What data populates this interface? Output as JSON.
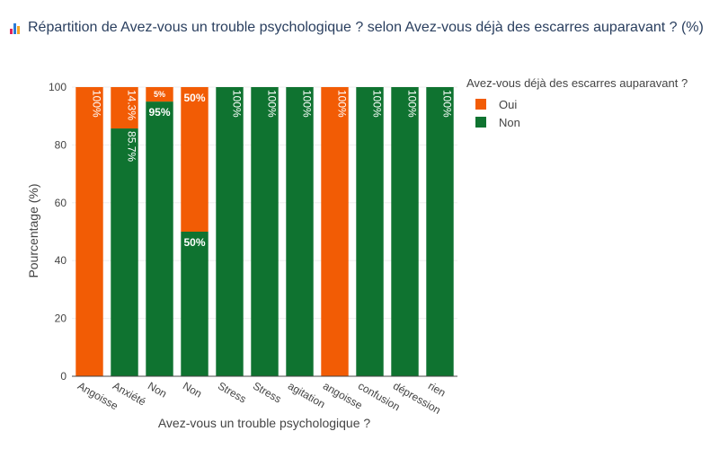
{
  "title": "Répartition de Avez-vous un trouble psychologique ? selon Avez-vous déjà des escarres auparavant ? (%)",
  "title_icon": "bar-chart-emoji-icon",
  "colors": {
    "oui": "#f25c05",
    "non": "#0f7330",
    "title": "#2a3f5f",
    "axis_text": "#444444",
    "grid": "#eeeeee"
  },
  "legend": {
    "title": "Avez-vous déjà des escarres auparavant ?",
    "items": [
      {
        "label": "Oui",
        "color": "#f25c05"
      },
      {
        "label": "Non",
        "color": "#0f7330"
      }
    ]
  },
  "chart_data": {
    "type": "bar",
    "stacked": true,
    "title": "Répartition de Avez-vous un trouble psychologique ? selon Avez-vous déjà des escarres auparavant ? (%)",
    "xlabel": "Avez-vous un trouble psychologique ?",
    "ylabel": "Pourcentage (%)",
    "ylim": [
      0,
      100
    ],
    "yticks": [
      0,
      20,
      40,
      60,
      80,
      100
    ],
    "categories": [
      "Angoisse",
      "Anxiété",
      "Non",
      "Non",
      "Stress",
      "Stress",
      "agitation",
      "angoisse",
      "confusion",
      "dépression",
      "rien"
    ],
    "series": [
      {
        "name": "Non",
        "color": "#0f7330",
        "values": [
          0,
          85.7,
          95,
          50,
          100,
          100,
          100,
          0,
          100,
          100,
          100
        ],
        "labels": [
          "",
          "85.7%",
          "95%",
          "50%",
          "100%",
          "100%",
          "100%",
          "",
          "100%",
          "100%",
          "100%"
        ]
      },
      {
        "name": "Oui",
        "color": "#f25c05",
        "values": [
          100,
          14.3,
          5,
          50,
          0,
          0,
          0,
          100,
          0,
          0,
          0
        ],
        "labels": [
          "100%",
          "14.3%",
          "5%",
          "50%",
          "",
          "",
          "",
          "100%",
          "",
          "",
          ""
        ]
      }
    ],
    "grid": true,
    "legend_position": "right"
  }
}
